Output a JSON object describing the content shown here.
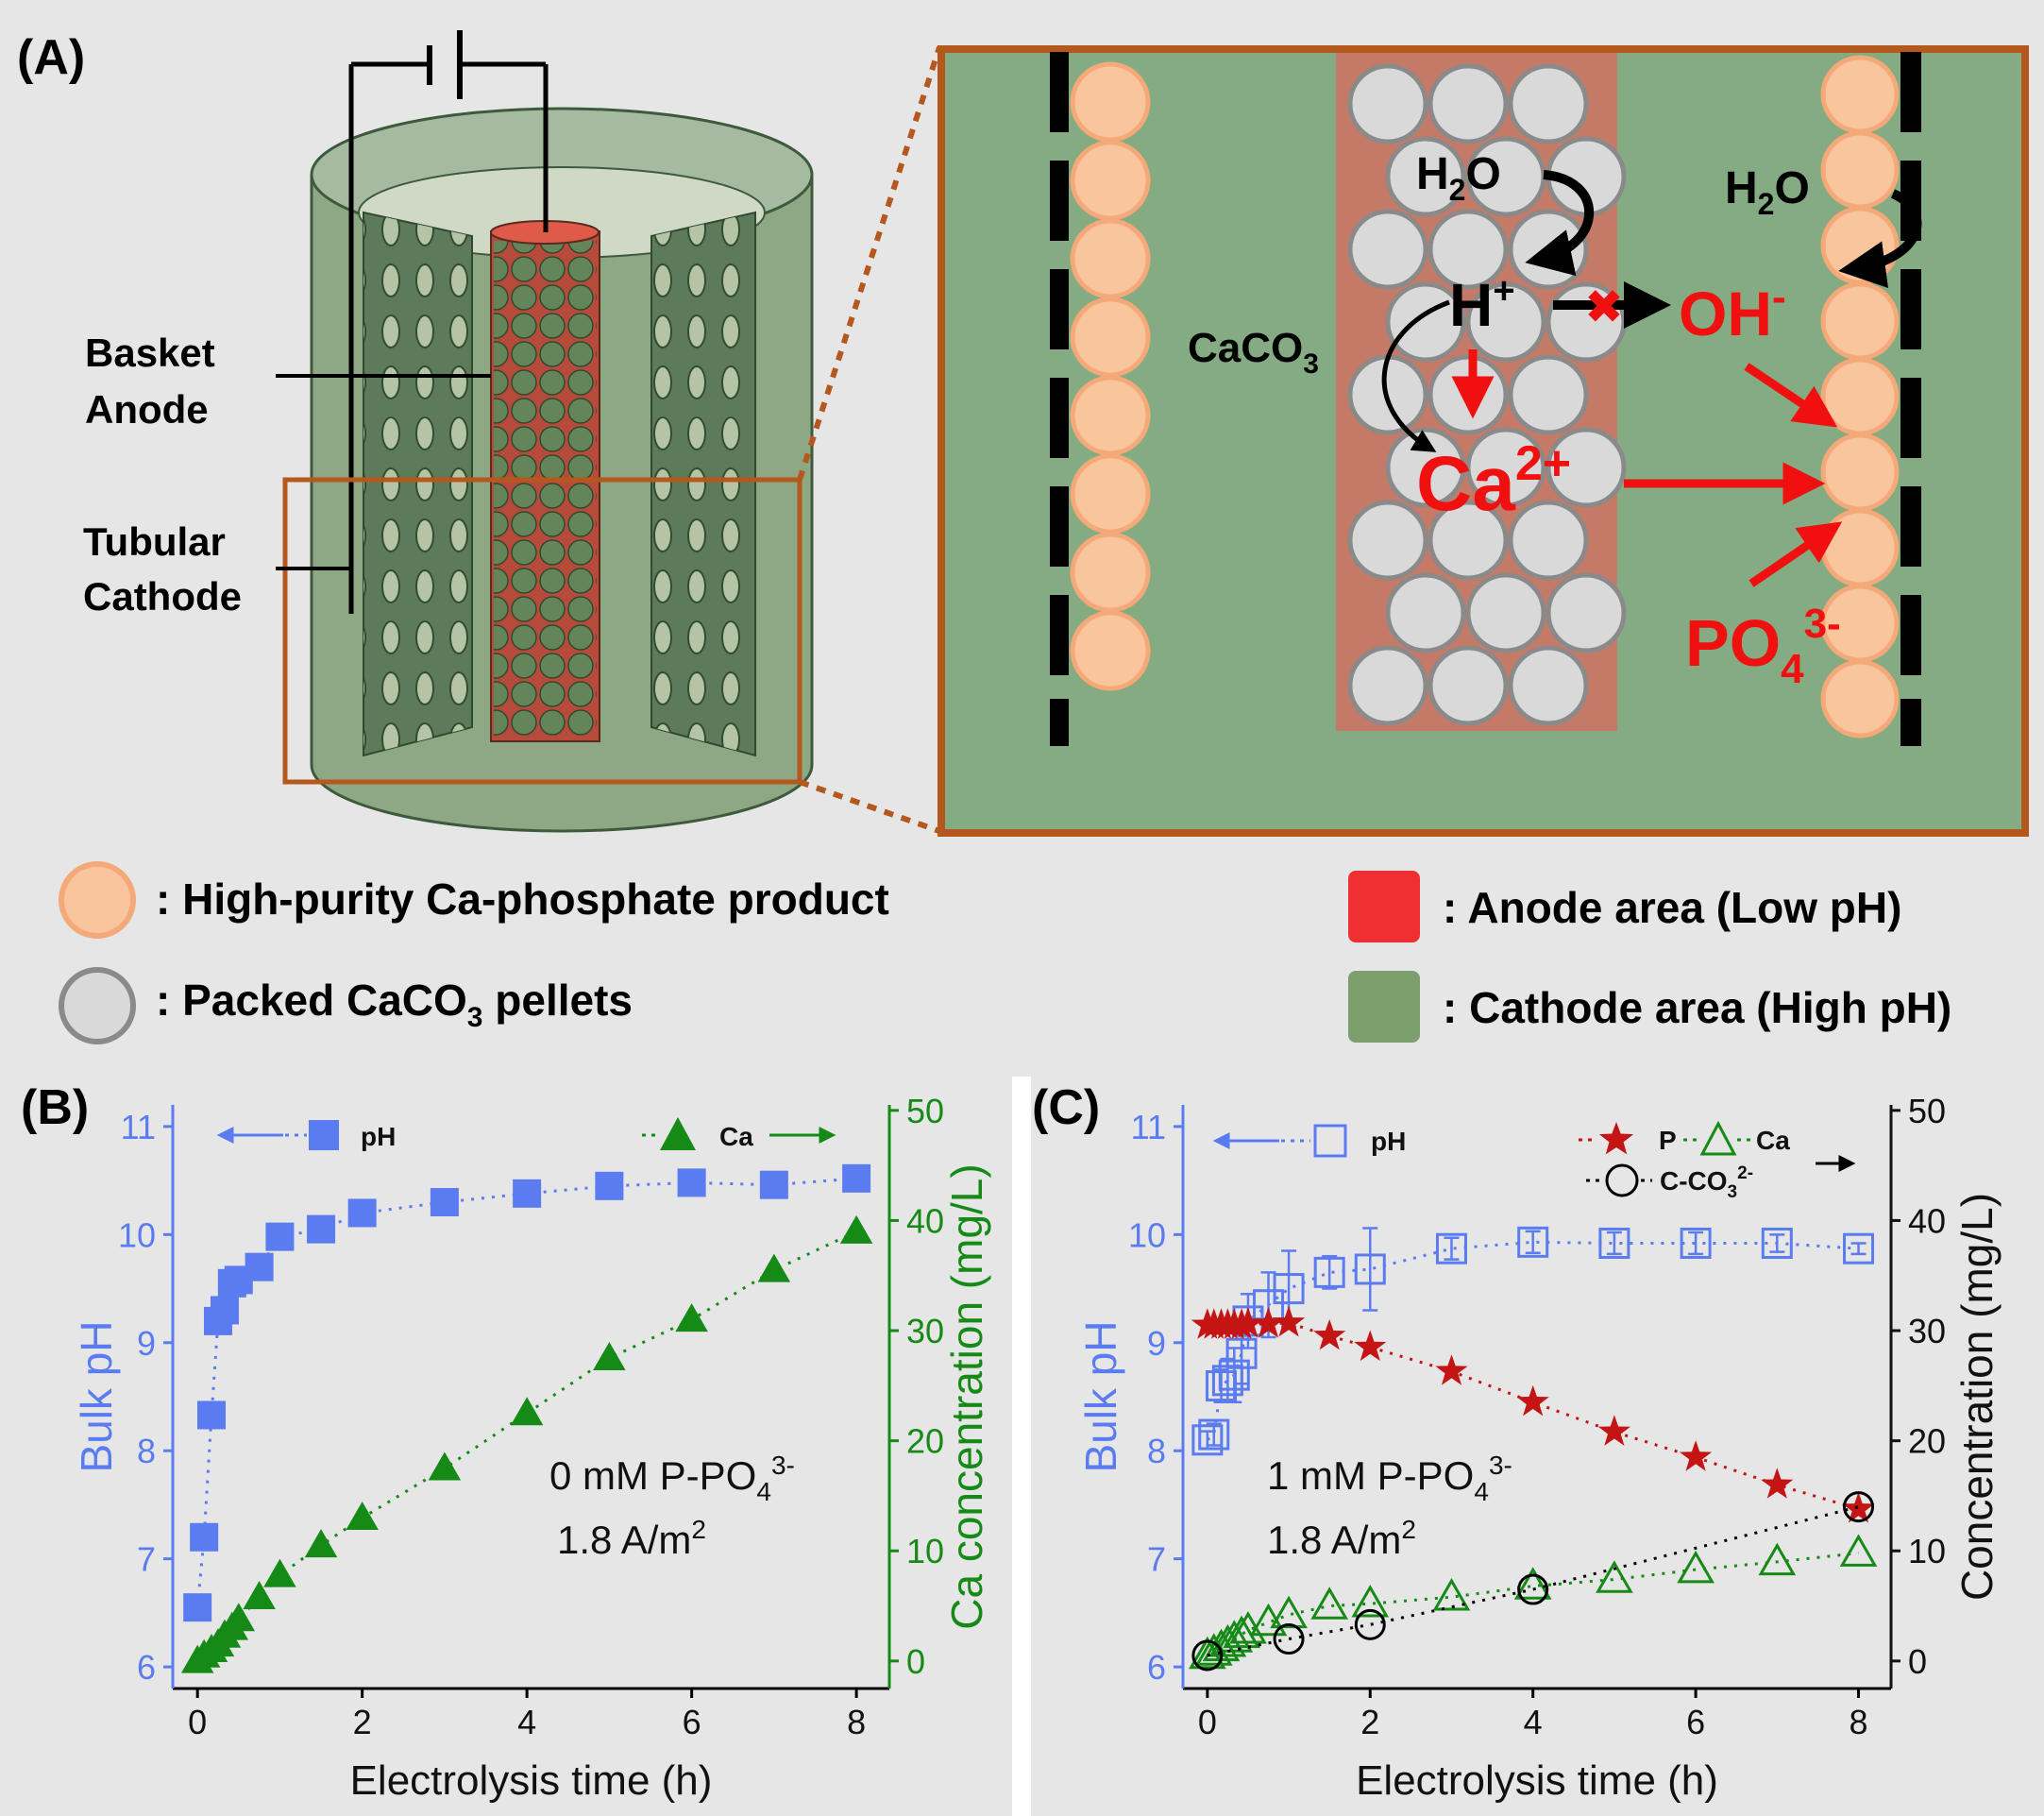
{
  "panel_a": {
    "label": "(A)",
    "reactor_labels": {
      "basket_anode": [
        "Basket",
        "Anode"
      ],
      "tubular_cathode": [
        "Tubular",
        "Cathode"
      ]
    },
    "zoom": {
      "h2o_left": {
        "main": "H",
        "sub": "2",
        "tail": "O"
      },
      "h2o_right": {
        "main": "H",
        "sub": "2",
        "tail": "O"
      },
      "h_plus": {
        "main": "H",
        "sup": "+"
      },
      "oh_minus": {
        "main": "OH",
        "sup": "-"
      },
      "caco3": {
        "main": "CaCO",
        "sub": "3"
      },
      "ca2plus": {
        "main": "Ca",
        "sup": "2+"
      },
      "po43minus": {
        "main": "PO",
        "sub": "4",
        "sup": "3-"
      },
      "blocked_mark": "✖"
    },
    "legend": {
      "product": ": High-purity Ca-phosphate product",
      "pellets": {
        "prefix": ": Packed CaCO",
        "sub": "3",
        "suffix": " pellets"
      },
      "anode": ": Anode area (Low pH)",
      "cathode": ": Cathode area (High pH)"
    },
    "colors": {
      "product": "#f9c59d",
      "pellet": "#d9d9d9",
      "anode": "#f03030",
      "cathode": "#7d9f6e",
      "zoom_border": "#b4581e"
    }
  },
  "chart_data": [
    {
      "panel": "(B)",
      "type": "scatter",
      "xlabel": "Electrolysis time (h)",
      "ylabel_left": "Bulk pH",
      "ylabel_right": "Ca concentration (mg/L)",
      "xlim": [
        -0.3,
        8.4
      ],
      "ylim_left": [
        5.8,
        11.2
      ],
      "ylim_right": [
        -2.5,
        50.5
      ],
      "x_ticks": [
        0,
        2,
        4,
        6,
        8
      ],
      "y_left_ticks": [
        6,
        7,
        8,
        9,
        10,
        11
      ],
      "y_right_ticks": [
        0,
        10,
        20,
        30,
        40,
        50
      ],
      "annotation": {
        "line1": "0 mM P-PO",
        "line1_sub": "4",
        "line1_sup": "3-",
        "line2": "1.8 A/m",
        "line2_sup": "2"
      },
      "legend": {
        "ph": "pH",
        "ca": "Ca"
      },
      "series": [
        {
          "name": "pH",
          "axis": "left",
          "marker": "square-filled",
          "color": "#5b7cf0",
          "x": [
            0,
            0.08,
            0.17,
            0.25,
            0.33,
            0.42,
            0.5,
            0.75,
            1,
            1.5,
            2,
            3,
            4,
            5,
            6,
            7,
            8
          ],
          "y": [
            6.55,
            7.2,
            8.33,
            9.2,
            9.3,
            9.55,
            9.58,
            9.7,
            9.98,
            10.05,
            10.2,
            10.3,
            10.38,
            10.45,
            10.48,
            10.46,
            10.52
          ]
        },
        {
          "name": "Ca",
          "axis": "right",
          "marker": "triangle-filled",
          "color": "#168a16",
          "x": [
            0,
            0.08,
            0.17,
            0.25,
            0.33,
            0.42,
            0.5,
            0.75,
            1,
            1.5,
            2,
            3,
            4,
            5,
            6,
            7,
            8
          ],
          "y": [
            0,
            0.5,
            1,
            1.5,
            2.3,
            3,
            3.8,
            5.8,
            7.8,
            10.5,
            13,
            17.5,
            22.5,
            27.5,
            31,
            35.5,
            39
          ]
        }
      ]
    },
    {
      "panel": "(C)",
      "type": "scatter",
      "xlabel": "Electrolysis time (h)",
      "ylabel_left": "Bulk pH",
      "ylabel_right": "Concentration (mg/L)",
      "xlim": [
        -0.3,
        8.4
      ],
      "ylim_left": [
        5.8,
        11.2
      ],
      "ylim_right": [
        -2.5,
        50.5
      ],
      "x_ticks": [
        0,
        2,
        4,
        6,
        8
      ],
      "y_left_ticks": [
        6,
        7,
        8,
        9,
        10,
        11
      ],
      "y_right_ticks": [
        0,
        10,
        20,
        30,
        40,
        50
      ],
      "annotation": {
        "line1": "1 mM P-PO",
        "line1_sub": "4",
        "line1_sup": "3-",
        "line2": "1.8 A/m",
        "line2_sup": "2"
      },
      "legend": {
        "ph": "pH",
        "p": "P",
        "ca": "Ca",
        "cco3": {
          "main": "C-CO",
          "sub": "3",
          "sup": "2-"
        }
      },
      "series": [
        {
          "name": "pH",
          "axis": "left",
          "marker": "square-open",
          "color": "#5b7cf0",
          "x": [
            0,
            0.08,
            0.17,
            0.25,
            0.33,
            0.42,
            0.5,
            0.75,
            1,
            1.5,
            2,
            3,
            4,
            5,
            6,
            7,
            8
          ],
          "y": [
            8.1,
            8.15,
            8.6,
            8.65,
            8.7,
            8.9,
            9.2,
            9.35,
            9.5,
            9.65,
            9.68,
            9.87,
            9.93,
            9.92,
            9.92,
            9.92,
            9.87
          ],
          "err": [
            0.08,
            0.1,
            0.15,
            0.2,
            0.25,
            0.28,
            0.25,
            0.3,
            0.35,
            0.15,
            0.38,
            0.1,
            0.1,
            0.1,
            0.1,
            0.08,
            0.05
          ]
        },
        {
          "name": "P",
          "axis": "right",
          "marker": "star",
          "color": "#c41414",
          "x": [
            0,
            0.08,
            0.17,
            0.25,
            0.33,
            0.42,
            0.5,
            0.75,
            1,
            1.5,
            2,
            3,
            4,
            5,
            6,
            7,
            8
          ],
          "y": [
            30.5,
            30.5,
            30.5,
            30.5,
            30.5,
            30.5,
            30.6,
            30.6,
            30.7,
            29.5,
            28.5,
            26.3,
            23.5,
            20.8,
            18.5,
            16,
            13.8
          ]
        },
        {
          "name": "Ca",
          "axis": "right",
          "marker": "triangle-open",
          "color": "#168a16",
          "x": [
            0,
            0.08,
            0.17,
            0.25,
            0.33,
            0.42,
            0.5,
            0.75,
            1,
            1.5,
            2,
            3,
            4,
            5,
            6,
            7,
            8
          ],
          "y": [
            0.5,
            0.8,
            1.2,
            1.6,
            2,
            2.4,
            2.8,
            3.5,
            4.2,
            5,
            5.2,
            5.8,
            6.8,
            7.4,
            8.3,
            9,
            9.8
          ]
        },
        {
          "name": "C-CO3 2-",
          "axis": "right",
          "marker": "circle-open",
          "color": "#000000",
          "x": [
            0,
            1,
            2,
            4,
            8
          ],
          "y": [
            0.5,
            2,
            3.3,
            6.5,
            14
          ]
        }
      ]
    }
  ]
}
